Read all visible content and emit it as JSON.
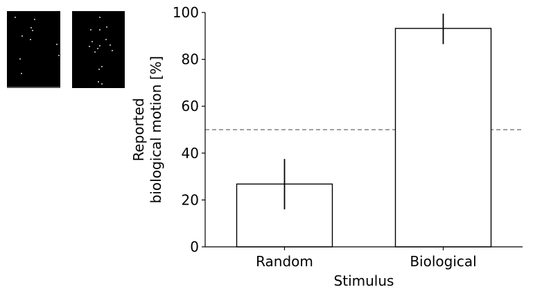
{
  "chart_data": {
    "type": "bar",
    "categories": [
      "Random",
      "Biological"
    ],
    "values": [
      26.8,
      93.2
    ],
    "error_bars": [
      [
        16.0,
        37.5
      ],
      [
        86.5,
        99.5
      ]
    ],
    "reference_line": {
      "value": 50,
      "style": "dashed",
      "color": "#808080"
    },
    "title": "",
    "xlabel": "Stimulus",
    "ylabel_lines": [
      "Reported",
      "biological motion [%]"
    ],
    "ylim": [
      0,
      100
    ],
    "yticks": [
      0,
      20,
      40,
      60,
      80,
      100
    ],
    "grid": false,
    "bar_fill": "#ffffff",
    "bar_edge": "#000000"
  },
  "thumbnails": [
    {
      "name": "random-dots",
      "dots": [
        [
          0.16,
          0.08
        ],
        [
          0.52,
          0.11
        ],
        [
          0.46,
          0.22
        ],
        [
          0.48,
          0.25
        ],
        [
          0.29,
          0.32
        ],
        [
          0.44,
          0.37
        ],
        [
          0.93,
          0.43
        ],
        [
          0.97,
          0.58
        ],
        [
          0.25,
          0.62
        ],
        [
          0.27,
          0.81
        ]
      ]
    },
    {
      "name": "biological-dots",
      "dots": [
        [
          0.52,
          0.08
        ],
        [
          0.35,
          0.24
        ],
        [
          0.52,
          0.24
        ],
        [
          0.66,
          0.21
        ],
        [
          0.64,
          0.37
        ],
        [
          0.38,
          0.4
        ],
        [
          0.53,
          0.45
        ],
        [
          0.72,
          0.44
        ],
        [
          0.33,
          0.46
        ],
        [
          0.49,
          0.49
        ],
        [
          0.44,
          0.53
        ],
        [
          0.76,
          0.51
        ],
        [
          0.56,
          0.72
        ],
        [
          0.51,
          0.76
        ],
        [
          0.5,
          0.92
        ],
        [
          0.56,
          0.95
        ]
      ]
    }
  ]
}
